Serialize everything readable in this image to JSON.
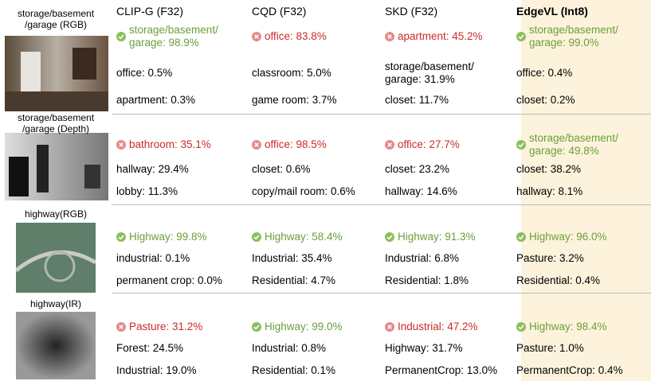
{
  "columns": [
    "CLIP-G (F32)",
    "CQD (F32)",
    "SKD (F32)",
    "EdgeVL (Int8)"
  ],
  "samples": [
    {
      "label": "storage/basement\n/garage (RGB)",
      "predictions": [
        [
          {
            "text": "storage/basement/\ngarage: 98.9%",
            "correct": true
          },
          {
            "text": "office: 0.5%"
          },
          {
            "text": "apartment: 0.3%"
          }
        ],
        [
          {
            "text": "office: 83.8%",
            "correct": false
          },
          {
            "text": "classroom: 5.0%"
          },
          {
            "text": "game room: 3.7%"
          }
        ],
        [
          {
            "text": "apartment: 45.2%",
            "correct": false
          },
          {
            "text": "storage/basement/\ngarage: 31.9%"
          },
          {
            "text": "closet: 11.7%"
          }
        ],
        [
          {
            "text": "storage/basement/\ngarage: 99.0%",
            "correct": true
          },
          {
            "text": "office: 0.4%"
          },
          {
            "text": "closet: 0.2%"
          }
        ]
      ]
    },
    {
      "label": "storage/basement\n/garage (Depth)",
      "predictions": [
        [
          {
            "text": "bathroom: 35.1%",
            "correct": false
          },
          {
            "text": "hallway: 29.4%"
          },
          {
            "text": "lobby: 11.3%"
          }
        ],
        [
          {
            "text": "office: 98.5%",
            "correct": false
          },
          {
            "text": "closet: 0.6%"
          },
          {
            "text": "copy/mail room: 0.6%"
          }
        ],
        [
          {
            "text": "office: 27.7%",
            "correct": false
          },
          {
            "text": "closet: 23.2%"
          },
          {
            "text": "hallway: 14.6%"
          }
        ],
        [
          {
            "text": "storage/basement/\ngarage: 49.8%",
            "correct": true
          },
          {
            "text": "closet: 38.2%"
          },
          {
            "text": "hallway: 8.1%"
          }
        ]
      ]
    },
    {
      "label": "highway(RGB)",
      "predictions": [
        [
          {
            "text": "Highway: 99.8%",
            "correct": true
          },
          {
            "text": "industrial: 0.1%"
          },
          {
            "text": "permanent crop: 0.0%"
          }
        ],
        [
          {
            "text": "Highway: 58.4%",
            "correct": true
          },
          {
            "text": "Industrial: 35.4%"
          },
          {
            "text": "Residential: 4.7%"
          }
        ],
        [
          {
            "text": "Highway: 91.3%",
            "correct": true
          },
          {
            "text": "Industrial: 6.8%"
          },
          {
            "text": "Residential: 1.8%"
          }
        ],
        [
          {
            "text": "Highway: 96.0%",
            "correct": true
          },
          {
            "text": "Pasture: 3.2%"
          },
          {
            "text": "Residential: 0.4%"
          }
        ]
      ]
    },
    {
      "label": "highway(IR)",
      "predictions": [
        [
          {
            "text": "Pasture: 31.2%",
            "correct": false
          },
          {
            "text": "Forest: 24.5%"
          },
          {
            "text": "Industrial: 19.0%"
          }
        ],
        [
          {
            "text": "Highway: 99.0%",
            "correct": true
          },
          {
            "text": "Industrial: 0.8%"
          },
          {
            "text": "Residential: 0.1%"
          }
        ],
        [
          {
            "text": "Industrial: 47.2%",
            "correct": false
          },
          {
            "text": "Highway: 31.7%"
          },
          {
            "text": "PermanentCrop: 13.0%"
          }
        ],
        [
          {
            "text": "Highway: 98.4%",
            "correct": true
          },
          {
            "text": "Pasture: 1.0%"
          },
          {
            "text": "PermanentCrop: 0.4%"
          }
        ]
      ]
    }
  ]
}
